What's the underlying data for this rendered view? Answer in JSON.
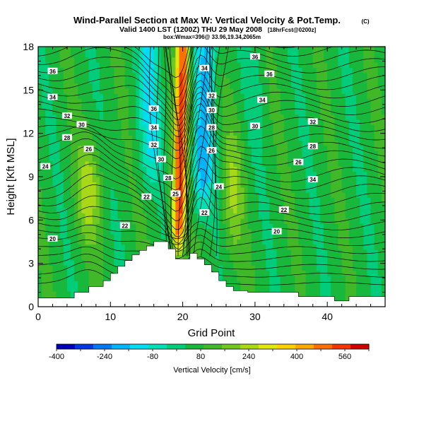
{
  "header": {
    "title": "Wind-Parallel Section at Max W: Vertical Velocity & Pot.Temp.",
    "copyright_mark": "(C)",
    "valid_line": "Valid 1400 LST (1200Z) THU 29 May 2008",
    "forecast_tag": "[18hrFcst@0200z]",
    "location_line": "box:Wmax=396@ 33.96,19.34,2065m"
  },
  "chart_data": {
    "type": "heatmap",
    "x": {
      "label": "Grid Point",
      "range": [
        0,
        48
      ],
      "ticks": [
        0,
        10,
        20,
        30,
        40
      ]
    },
    "y": {
      "label": "Height [Kft MSL]",
      "range": [
        0,
        18
      ],
      "ticks": [
        0,
        3,
        6,
        9,
        12,
        15,
        18
      ]
    },
    "colorbar": {
      "label": "Vertical Velocity [cm/s]",
      "range": [
        -400,
        640
      ],
      "ticks": [
        -400,
        -240,
        -80,
        80,
        240,
        400,
        560
      ],
      "colors": [
        "#0000b4",
        "#0038e0",
        "#0078f0",
        "#00b4f8",
        "#00dcf0",
        "#00e0b4",
        "#00cc7a",
        "#18b83c",
        "#40b828",
        "#70c820",
        "#a8d818",
        "#e0e810",
        "#ffd000",
        "#ffa800",
        "#ff7000",
        "#f03800",
        "#d00000"
      ]
    },
    "series": [
      {
        "type": "field",
        "description_values": "vertical velocity cells, cm/s",
        "features": [
          {
            "kind": "updraft",
            "x_center": 20,
            "max_value": 396
          },
          {
            "kind": "downdraft",
            "x_center": 23,
            "min_value": -200
          },
          {
            "kind": "weak-updraft",
            "x_center": 7,
            "y_center": 8,
            "value": 200
          }
        ]
      }
    ],
    "contours": [
      {
        "x": 2,
        "y": 16.3,
        "label": "36"
      },
      {
        "x": 30,
        "y": 17.3,
        "label": "36"
      },
      {
        "x": 32,
        "y": 16.1,
        "label": "36"
      },
      {
        "x": 2,
        "y": 14.5,
        "label": "34"
      },
      {
        "x": 31,
        "y": 14.3,
        "label": "34"
      },
      {
        "x": 4,
        "y": 13.2,
        "label": "32"
      },
      {
        "x": 6,
        "y": 12.6,
        "label": "30"
      },
      {
        "x": 4,
        "y": 11.7,
        "label": "28"
      },
      {
        "x": 7,
        "y": 10.9,
        "label": "26"
      },
      {
        "x": 1,
        "y": 9.7,
        "label": "24"
      },
      {
        "x": 16,
        "y": 13.7,
        "label": "36"
      },
      {
        "x": 16,
        "y": 12.4,
        "label": "34"
      },
      {
        "x": 16,
        "y": 11.2,
        "label": "32"
      },
      {
        "x": 17,
        "y": 10.2,
        "label": "30"
      },
      {
        "x": 18,
        "y": 8.9,
        "label": "28"
      },
      {
        "x": 15,
        "y": 7.6,
        "label": "22"
      },
      {
        "x": 12,
        "y": 5.6,
        "label": "22"
      },
      {
        "x": 19,
        "y": 7.8,
        "label": "25"
      },
      {
        "x": 23,
        "y": 16.5,
        "label": "34"
      },
      {
        "x": 24,
        "y": 14.6,
        "label": "32"
      },
      {
        "x": 24,
        "y": 13.6,
        "label": "30"
      },
      {
        "x": 24,
        "y": 12.4,
        "label": "28"
      },
      {
        "x": 24,
        "y": 10.8,
        "label": "26"
      },
      {
        "x": 25,
        "y": 8.3,
        "label": "24"
      },
      {
        "x": 23,
        "y": 6.5,
        "label": "22"
      },
      {
        "x": 30,
        "y": 12.5,
        "label": "30"
      },
      {
        "x": 38,
        "y": 12.8,
        "label": "32"
      },
      {
        "x": 38,
        "y": 11.1,
        "label": "28"
      },
      {
        "x": 36,
        "y": 10.0,
        "label": "26"
      },
      {
        "x": 38,
        "y": 8.8,
        "label": "34"
      },
      {
        "x": 34,
        "y": 6.7,
        "label": "22"
      },
      {
        "x": 33,
        "y": 5.2,
        "label": "20"
      },
      {
        "x": 2,
        "y": 4.7,
        "label": "20"
      }
    ],
    "terrain_mask": [
      [
        0,
        0.6
      ],
      [
        5,
        0.6
      ],
      [
        5,
        1.0
      ],
      [
        7,
        1.0
      ],
      [
        7,
        1.4
      ],
      [
        9,
        1.4
      ],
      [
        9,
        1.8
      ],
      [
        10,
        1.8
      ],
      [
        10,
        2.3
      ],
      [
        11,
        2.3
      ],
      [
        11,
        2.8
      ],
      [
        12,
        2.8
      ],
      [
        12,
        3.2
      ],
      [
        13,
        3.2
      ],
      [
        13,
        3.6
      ],
      [
        14,
        3.6
      ],
      [
        14,
        3.9
      ],
      [
        15,
        3.9
      ],
      [
        15,
        4.2
      ],
      [
        16,
        4.2
      ],
      [
        16,
        4.5
      ],
      [
        18,
        4.5
      ],
      [
        18,
        4.0
      ],
      [
        19,
        4.0
      ],
      [
        19,
        3.3
      ],
      [
        21,
        3.3
      ],
      [
        21,
        3.7
      ],
      [
        22,
        3.7
      ],
      [
        22,
        3.3
      ],
      [
        23,
        3.3
      ],
      [
        23,
        2.9
      ],
      [
        24,
        2.9
      ],
      [
        24,
        2.4
      ],
      [
        25,
        2.4
      ],
      [
        25,
        1.8
      ],
      [
        26,
        1.8
      ],
      [
        26,
        1.4
      ],
      [
        27,
        1.4
      ],
      [
        27,
        1.1
      ],
      [
        29,
        1.1
      ],
      [
        29,
        1.0
      ],
      [
        36,
        1.0
      ],
      [
        36,
        0.7
      ],
      [
        41,
        0.7
      ],
      [
        41,
        0.4
      ],
      [
        43,
        0.4
      ],
      [
        43,
        0.7
      ],
      [
        48,
        0.7
      ]
    ]
  }
}
